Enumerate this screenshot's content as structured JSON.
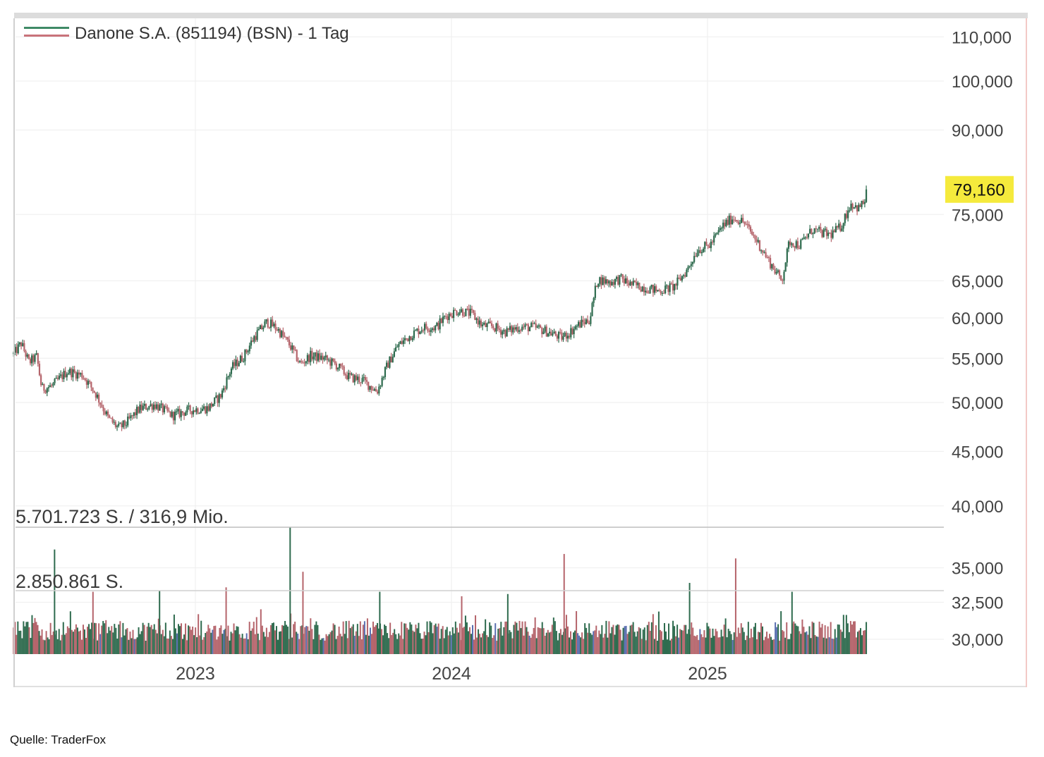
{
  "chart_data": {
    "type": "candlestick",
    "title": "Danone S.A. (851194) (BSN) - 1 Tag",
    "source": "Quelle: TraderFox",
    "last_price_label": "79,160",
    "last_price": 79.16,
    "y_scale": "log",
    "y_ticks": [
      {
        "value": 30,
        "label": "30,000"
      },
      {
        "value": 32.5,
        "label": "32,500"
      },
      {
        "value": 35,
        "label": "35,000"
      },
      {
        "value": 40,
        "label": "40,000"
      },
      {
        "value": 45,
        "label": "45,000"
      },
      {
        "value": 50,
        "label": "50,000"
      },
      {
        "value": 55,
        "label": "55,000"
      },
      {
        "value": 60,
        "label": "60,000"
      },
      {
        "value": 65,
        "label": "65,000"
      },
      {
        "value": 75,
        "label": "75,000"
      },
      {
        "value": 90,
        "label": "90,000"
      },
      {
        "value": 100,
        "label": "100,000"
      },
      {
        "value": 110,
        "label": "110,000"
      }
    ],
    "x_ticks": [
      {
        "t": 0.5,
        "label": "2023"
      },
      {
        "t": 1.5,
        "label": "2024"
      },
      {
        "t": 2.5,
        "label": "2025"
      }
    ],
    "x_range": [
      -0.21,
      3.37
    ],
    "price_path": [
      [
        -0.21,
        55.5
      ],
      [
        -0.18,
        56.8
      ],
      [
        -0.15,
        54.5
      ],
      [
        -0.12,
        55.2
      ],
      [
        -0.1,
        51.5
      ],
      [
        -0.06,
        51.8
      ],
      [
        0.0,
        53.5
      ],
      [
        0.06,
        53.0
      ],
      [
        0.11,
        51.0
      ],
      [
        0.16,
        48.3
      ],
      [
        0.2,
        47.3
      ],
      [
        0.23,
        47.8
      ],
      [
        0.28,
        49.3
      ],
      [
        0.34,
        49.8
      ],
      [
        0.41,
        48.6
      ],
      [
        0.48,
        49.2
      ],
      [
        0.55,
        49.4
      ],
      [
        0.6,
        50.8
      ],
      [
        0.64,
        53.8
      ],
      [
        0.69,
        55.3
      ],
      [
        0.73,
        57.6
      ],
      [
        0.78,
        59.5
      ],
      [
        0.82,
        58.6
      ],
      [
        0.87,
        56.5
      ],
      [
        0.91,
        54.3
      ],
      [
        0.95,
        55.3
      ],
      [
        1.0,
        55.0
      ],
      [
        1.05,
        54.2
      ],
      [
        1.1,
        52.8
      ],
      [
        1.15,
        52.5
      ],
      [
        1.21,
        51.2
      ],
      [
        1.25,
        54.2
      ],
      [
        1.29,
        56.5
      ],
      [
        1.34,
        57.8
      ],
      [
        1.39,
        58.8
      ],
      [
        1.44,
        58.8
      ],
      [
        1.48,
        60.3
      ],
      [
        1.53,
        61.0
      ],
      [
        1.58,
        60.5
      ],
      [
        1.62,
        59.0
      ],
      [
        1.66,
        58.9
      ],
      [
        1.71,
        58.2
      ],
      [
        1.76,
        58.8
      ],
      [
        1.82,
        58.8
      ],
      [
        1.87,
        58.3
      ],
      [
        1.93,
        57.5
      ],
      [
        1.96,
        58.1
      ],
      [
        1.99,
        59.0
      ],
      [
        2.04,
        59.8
      ],
      [
        2.07,
        65.2
      ],
      [
        2.12,
        64.8
      ],
      [
        2.16,
        65.3
      ],
      [
        2.2,
        64.5
      ],
      [
        2.26,
        64.0
      ],
      [
        2.31,
        63.6
      ],
      [
        2.37,
        64.2
      ],
      [
        2.42,
        66.5
      ],
      [
        2.46,
        69.5
      ],
      [
        2.51,
        70.2
      ],
      [
        2.56,
        73.2
      ],
      [
        2.6,
        74.5
      ],
      [
        2.64,
        73.8
      ],
      [
        2.69,
        71.0
      ],
      [
        2.74,
        67.8
      ],
      [
        2.79,
        65.0
      ],
      [
        2.82,
        70.8
      ],
      [
        2.86,
        70.2
      ],
      [
        2.91,
        72.6
      ],
      [
        2.95,
        72.0
      ],
      [
        2.98,
        71.8
      ],
      [
        3.02,
        73.0
      ],
      [
        3.06,
        76.8
      ],
      [
        3.09,
        76.0
      ],
      [
        3.12,
        77.5
      ]
    ],
    "volume": {
      "max_label": "5.701.723 S. / 316,9 Mio.",
      "mid_label": "2.850.861 S.",
      "max_shares": 5701723,
      "typical_shares_range": [
        600000,
        1500000
      ],
      "spikes": [
        {
          "t": -0.05,
          "shares": 4700000
        },
        {
          "t": 0.1,
          "shares": 2800000
        },
        {
          "t": 0.36,
          "shares": 2850000
        },
        {
          "t": 0.62,
          "shares": 3000000
        },
        {
          "t": 0.87,
          "shares": 5701723
        },
        {
          "t": 0.92,
          "shares": 3700000
        },
        {
          "t": 1.22,
          "shares": 2800000
        },
        {
          "t": 1.54,
          "shares": 2600000
        },
        {
          "t": 1.72,
          "shares": 2700000
        },
        {
          "t": 1.94,
          "shares": 4500000
        },
        {
          "t": 2.43,
          "shares": 3200000
        },
        {
          "t": 2.61,
          "shares": 4300000
        },
        {
          "t": 2.83,
          "shares": 2800000
        }
      ]
    },
    "colors": {
      "up": "#2e6b4e",
      "down": "#b5646b",
      "up_alt": "#5a6fb0",
      "grid": "#eeeeee",
      "price_tag_bg": "#f5ea3c",
      "legend_green": "#3f8a66",
      "legend_red": "#c9737a"
    }
  }
}
